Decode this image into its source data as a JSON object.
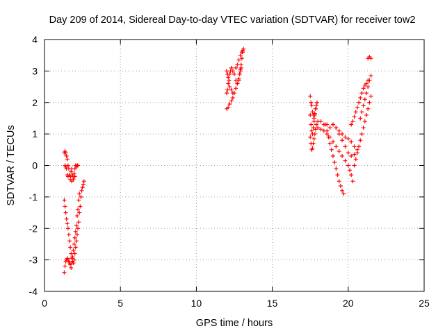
{
  "chart_data": {
    "type": "scatter",
    "title": "Day 209 of 2014, Sidereal Day-to-day VTEC variation (SDTVAR) for receiver tow2",
    "xlabel": "GPS time / hours",
    "ylabel": "SDTVAR / TECUs",
    "xlim": [
      0,
      25
    ],
    "ylim": [
      -4,
      4
    ],
    "x_ticks": [
      0,
      5,
      10,
      15,
      20,
      25
    ],
    "x_tick_labels": [
      "0",
      "5",
      "10",
      "15",
      "20",
      "25"
    ],
    "y_ticks": [
      -4,
      -3,
      -2,
      -1,
      0,
      1,
      2,
      3,
      4
    ],
    "y_tick_labels": [
      "-4",
      "-3",
      "-2",
      "-1",
      "0",
      "1",
      "2",
      "3",
      "4"
    ],
    "grid": true,
    "legend": "none",
    "marker": "plus",
    "series_color": "#ff0000",
    "series": [
      {
        "points": [
          [
            1.3,
            0.4
          ],
          [
            1.35,
            0.45
          ],
          [
            1.4,
            0.4
          ],
          [
            1.45,
            0.3
          ],
          [
            1.5,
            0.2
          ],
          [
            1.55,
            0.0
          ],
          [
            1.6,
            -0.1
          ],
          [
            1.65,
            -0.3
          ],
          [
            1.7,
            -0.35
          ],
          [
            1.75,
            -0.2
          ],
          [
            1.8,
            -0.1
          ],
          [
            1.85,
            -0.3
          ],
          [
            1.9,
            -0.4
          ],
          [
            1.95,
            -0.25
          ],
          [
            2.0,
            -0.1
          ],
          [
            2.05,
            0.0
          ],
          [
            2.1,
            -0.05
          ],
          [
            2.15,
            0.0
          ],
          [
            2.2,
            0.0
          ],
          [
            1.35,
            0.0
          ],
          [
            1.4,
            -0.05
          ],
          [
            1.45,
            -0.1
          ],
          [
            1.5,
            -0.3
          ],
          [
            1.55,
            -0.35
          ],
          [
            1.7,
            -0.45
          ],
          [
            1.8,
            -0.5
          ],
          [
            1.9,
            -0.45
          ],
          [
            2.0,
            -0.35
          ],
          [
            1.3,
            -1.1
          ],
          [
            1.35,
            -1.3
          ],
          [
            1.4,
            -1.5
          ],
          [
            1.45,
            -1.7
          ],
          [
            1.5,
            -1.85
          ],
          [
            1.55,
            -2.0
          ],
          [
            1.6,
            -2.2
          ],
          [
            1.65,
            -2.4
          ],
          [
            1.7,
            -2.6
          ],
          [
            1.75,
            -2.8
          ],
          [
            1.8,
            -2.95
          ],
          [
            1.85,
            -3.05
          ],
          [
            1.9,
            -3.1
          ],
          [
            1.95,
            -3.0
          ],
          [
            2.0,
            -2.8
          ],
          [
            2.05,
            -2.6
          ],
          [
            2.1,
            -2.4
          ],
          [
            2.15,
            -2.2
          ],
          [
            2.2,
            -2.0
          ],
          [
            2.25,
            -1.8
          ],
          [
            2.3,
            -1.5
          ],
          [
            2.35,
            -1.3
          ],
          [
            2.4,
            -1.0
          ],
          [
            2.45,
            -0.8
          ],
          [
            2.5,
            -0.7
          ],
          [
            2.55,
            -0.6
          ],
          [
            2.6,
            -0.5
          ],
          [
            1.3,
            -3.4
          ],
          [
            1.35,
            -3.2
          ],
          [
            1.4,
            -3.05
          ],
          [
            1.45,
            -3.0
          ],
          [
            1.5,
            -2.95
          ],
          [
            1.55,
            -3.0
          ],
          [
            1.6,
            -3.05
          ],
          [
            1.65,
            -3.1
          ],
          [
            1.7,
            -3.15
          ],
          [
            1.75,
            -3.25
          ],
          [
            1.8,
            -3.1
          ],
          [
            1.85,
            -2.9
          ],
          [
            1.9,
            -2.7
          ],
          [
            1.95,
            -2.5
          ],
          [
            2.0,
            -2.3
          ],
          [
            2.05,
            -2.1
          ],
          [
            2.1,
            -1.9
          ],
          [
            2.15,
            -1.6
          ],
          [
            2.2,
            -1.4
          ],
          [
            2.25,
            -1.1
          ],
          [
            2.3,
            -0.9
          ]
        ]
      },
      {
        "points": [
          [
            12.0,
            2.3
          ],
          [
            12.05,
            2.4
          ],
          [
            12.1,
            2.6
          ],
          [
            12.15,
            2.7
          ],
          [
            12.2,
            2.9
          ],
          [
            12.25,
            3.0
          ],
          [
            12.3,
            3.1
          ],
          [
            12.4,
            3.0
          ],
          [
            12.5,
            2.9
          ],
          [
            12.6,
            2.7
          ],
          [
            12.7,
            2.6
          ],
          [
            12.8,
            2.7
          ],
          [
            12.85,
            2.9
          ],
          [
            12.9,
            3.0
          ],
          [
            12.95,
            3.1
          ],
          [
            12.0,
            3.0
          ],
          [
            12.05,
            2.9
          ],
          [
            12.1,
            2.8
          ],
          [
            12.2,
            2.5
          ],
          [
            12.3,
            2.4
          ],
          [
            12.4,
            2.3
          ],
          [
            12.0,
            1.8
          ],
          [
            12.1,
            1.85
          ],
          [
            12.2,
            1.95
          ],
          [
            12.3,
            2.05
          ],
          [
            12.4,
            2.15
          ],
          [
            12.5,
            2.3
          ],
          [
            12.6,
            2.45
          ],
          [
            12.7,
            2.6
          ],
          [
            12.8,
            2.75
          ],
          [
            12.85,
            2.9
          ],
          [
            12.9,
            3.05
          ],
          [
            12.95,
            3.2
          ],
          [
            13.0,
            3.4
          ],
          [
            13.05,
            3.6
          ],
          [
            13.1,
            3.7
          ],
          [
            12.6,
            3.1
          ],
          [
            12.7,
            3.2
          ],
          [
            12.8,
            3.35
          ],
          [
            12.9,
            3.5
          ],
          [
            13.0,
            3.6
          ],
          [
            13.05,
            3.65
          ]
        ]
      },
      {
        "points": [
          [
            17.5,
            2.2
          ],
          [
            17.55,
            2.0
          ],
          [
            17.6,
            1.9
          ],
          [
            17.65,
            1.7
          ],
          [
            17.7,
            1.6
          ],
          [
            17.75,
            1.5
          ],
          [
            17.8,
            1.6
          ],
          [
            17.85,
            1.8
          ],
          [
            17.9,
            1.9
          ],
          [
            17.95,
            2.0
          ],
          [
            17.5,
            1.6
          ],
          [
            17.55,
            1.3
          ],
          [
            17.6,
            1.1
          ],
          [
            17.65,
            1.0
          ],
          [
            17.7,
            1.2
          ],
          [
            17.75,
            1.4
          ],
          [
            17.8,
            1.65
          ],
          [
            17.85,
            1.8
          ],
          [
            17.5,
            0.9
          ],
          [
            17.55,
            0.7
          ],
          [
            17.6,
            0.5
          ],
          [
            17.65,
            0.55
          ],
          [
            17.7,
            0.7
          ],
          [
            17.75,
            0.85
          ],
          [
            17.8,
            1.0
          ],
          [
            17.85,
            1.15
          ],
          [
            17.9,
            1.3
          ],
          [
            18.0,
            1.4
          ],
          [
            18.2,
            1.4
          ],
          [
            18.4,
            1.3
          ],
          [
            18.6,
            1.3
          ],
          [
            18.8,
            1.2
          ],
          [
            19.0,
            1.3
          ],
          [
            19.2,
            1.2
          ],
          [
            19.4,
            1.1
          ],
          [
            19.6,
            1.0
          ],
          [
            19.8,
            0.9
          ],
          [
            20.0,
            0.85
          ],
          [
            20.2,
            0.75
          ],
          [
            20.4,
            0.6
          ],
          [
            18.0,
            1.2
          ],
          [
            18.2,
            1.15
          ],
          [
            18.4,
            1.1
          ],
          [
            18.6,
            1.0
          ],
          [
            18.8,
            0.9
          ],
          [
            19.0,
            0.75
          ],
          [
            19.2,
            0.6
          ],
          [
            19.4,
            0.45
          ],
          [
            19.6,
            0.3
          ],
          [
            19.8,
            0.15
          ],
          [
            20.0,
            0.0
          ],
          [
            20.1,
            -0.15
          ],
          [
            20.2,
            -0.3
          ],
          [
            20.3,
            -0.5
          ],
          [
            18.5,
            1.3
          ],
          [
            18.6,
            1.1
          ],
          [
            18.7,
            0.9
          ],
          [
            18.8,
            0.7
          ],
          [
            18.9,
            0.5
          ],
          [
            19.0,
            0.3
          ],
          [
            19.1,
            0.1
          ],
          [
            19.2,
            -0.1
          ],
          [
            19.3,
            -0.3
          ],
          [
            19.4,
            -0.5
          ],
          [
            19.5,
            -0.65
          ],
          [
            19.6,
            -0.8
          ],
          [
            19.7,
            -0.9
          ],
          [
            19.0,
            1.3
          ],
          [
            19.2,
            1.2
          ],
          [
            19.4,
            1.0
          ],
          [
            19.6,
            0.8
          ],
          [
            19.8,
            0.6
          ],
          [
            20.0,
            0.4
          ],
          [
            20.2,
            0.3
          ],
          [
            20.4,
            0.35
          ],
          [
            20.6,
            0.5
          ],
          [
            20.2,
            1.3
          ],
          [
            20.3,
            1.4
          ],
          [
            20.4,
            1.55
          ],
          [
            20.5,
            1.7
          ],
          [
            20.6,
            1.85
          ],
          [
            20.7,
            2.0
          ],
          [
            20.8,
            2.15
          ],
          [
            20.9,
            2.3
          ],
          [
            21.0,
            2.45
          ],
          [
            21.1,
            2.55
          ],
          [
            21.2,
            2.6
          ],
          [
            21.3,
            2.7
          ],
          [
            20.4,
            0.0
          ],
          [
            20.5,
            0.2
          ],
          [
            20.6,
            0.4
          ],
          [
            20.7,
            0.6
          ],
          [
            20.8,
            0.8
          ],
          [
            20.9,
            1.0
          ],
          [
            21.0,
            1.2
          ],
          [
            21.1,
            1.4
          ],
          [
            21.2,
            1.6
          ],
          [
            21.3,
            1.8
          ],
          [
            21.4,
            2.0
          ],
          [
            21.5,
            2.2
          ],
          [
            20.8,
            1.5
          ],
          [
            20.9,
            1.7
          ],
          [
            21.0,
            1.9
          ],
          [
            21.1,
            2.1
          ],
          [
            21.2,
            2.3
          ],
          [
            21.3,
            2.5
          ],
          [
            21.4,
            2.7
          ],
          [
            21.5,
            2.85
          ],
          [
            21.3,
            3.4
          ],
          [
            21.4,
            3.45
          ],
          [
            21.5,
            3.4
          ]
        ]
      }
    ]
  }
}
